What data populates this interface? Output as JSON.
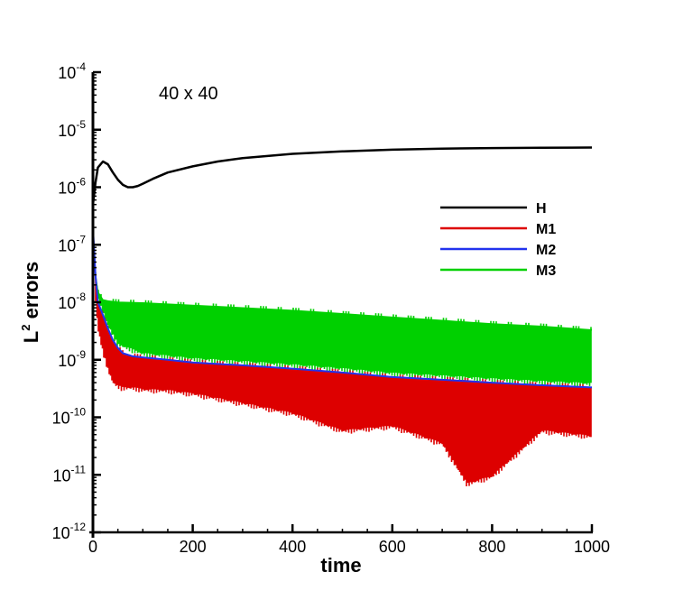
{
  "chart_data": {
    "type": "line",
    "annotation": "40 x 40",
    "xlabel": "time",
    "ylabel_base": "L",
    "ylabel_sup": "2",
    "ylabel_rest": " errors",
    "xlim": [
      0,
      1000
    ],
    "ylim": [
      1e-12,
      0.0001
    ],
    "yscale": "log",
    "x_ticks": [
      0,
      200,
      400,
      600,
      800,
      1000
    ],
    "x_tick_labels": [
      "0",
      "200",
      "400",
      "600",
      "800",
      "1000"
    ],
    "y_tick_exponents": [
      -12,
      -11,
      -10,
      -9,
      -8,
      -7,
      -6,
      -5,
      -4
    ],
    "y_tick_labels": [
      {
        "base": "10",
        "exp": "-12"
      },
      {
        "base": "10",
        "exp": "-11"
      },
      {
        "base": "10",
        "exp": "-10"
      },
      {
        "base": "10",
        "exp": "-9"
      },
      {
        "base": "10",
        "exp": "-8"
      },
      {
        "base": "10",
        "exp": "-7"
      },
      {
        "base": "10",
        "exp": "-6"
      },
      {
        "base": "10",
        "exp": "-5"
      },
      {
        "base": "10",
        "exp": "-4"
      }
    ],
    "legend_position": "right, upper-middle",
    "series": [
      {
        "name": "H",
        "color": "#000000",
        "style": "line",
        "x": [
          0,
          5,
          10,
          20,
          30,
          40,
          50,
          60,
          70,
          80,
          90,
          100,
          120,
          150,
          200,
          250,
          300,
          400,
          500,
          600,
          700,
          800,
          900,
          1000
        ],
        "y": [
          5e-07,
          1.2e-06,
          2.2e-06,
          2.8e-06,
          2.5e-06,
          1.8e-06,
          1.35e-06,
          1.1e-06,
          1e-06,
          1e-06,
          1.05e-06,
          1.15e-06,
          1.4e-06,
          1.8e-06,
          2.3e-06,
          2.8e-06,
          3.2e-06,
          3.8e-06,
          4.2e-06,
          4.5e-06,
          4.7e-06,
          4.8e-06,
          4.85e-06,
          4.9e-06
        ]
      },
      {
        "name": "M1",
        "color": "#dd0000",
        "style": "oscillating band",
        "x": [
          0,
          5,
          10,
          20,
          30,
          40,
          50,
          60,
          80,
          100,
          150,
          200,
          300,
          400,
          500,
          600,
          700,
          750,
          800,
          900,
          1000
        ],
        "upper": [
          2e-07,
          3e-08,
          1e-08,
          6e-09,
          3.5e-09,
          2.2e-09,
          1.6e-09,
          1.3e-09,
          1.15e-09,
          1.1e-09,
          1e-09,
          9e-10,
          8e-10,
          7e-10,
          6e-10,
          5e-10,
          4.5e-10,
          4.3e-10,
          4e-10,
          3.6e-10,
          3.3e-10
        ],
        "lower": [
          2e-07,
          1e-08,
          3e-09,
          1.2e-09,
          6e-10,
          3.5e-10,
          3e-10,
          2.8e-10,
          2.8e-10,
          2.6e-10,
          2.5e-10,
          2.2e-10,
          1.5e-10,
          1e-10,
          5e-11,
          6e-11,
          3e-11,
          6e-12,
          8e-12,
          5e-11,
          4e-11
        ]
      },
      {
        "name": "M2",
        "color": "#2233ee",
        "style": "line",
        "x": [
          0,
          5,
          10,
          20,
          30,
          40,
          50,
          60,
          80,
          100,
          150,
          200,
          300,
          400,
          500,
          600,
          700,
          800,
          900,
          1000
        ],
        "y": [
          2e-07,
          3e-08,
          1e-08,
          6e-09,
          3.5e-09,
          2.2e-09,
          1.6e-09,
          1.3e-09,
          1.15e-09,
          1.1e-09,
          1e-09,
          9e-10,
          8e-10,
          7e-10,
          6e-10,
          5e-10,
          4.5e-10,
          4e-10,
          3.6e-10,
          3.3e-10
        ]
      },
      {
        "name": "M3",
        "color": "#00d000",
        "style": "oscillating band",
        "x": [
          0,
          5,
          10,
          20,
          30,
          50,
          100,
          200,
          300,
          400,
          500,
          600,
          700,
          800,
          900,
          1000
        ],
        "upper": [
          2e-07,
          3e-08,
          1.5e-08,
          1.1e-08,
          1.05e-08,
          1e-08,
          9.7e-09,
          8.8e-09,
          8e-09,
          7.2e-09,
          6.3e-09,
          5.5e-09,
          4.8e-09,
          4.2e-09,
          3.8e-09,
          3.3e-09
        ],
        "lower": [
          2e-07,
          3e-08,
          1e-08,
          6e-09,
          3.5e-09,
          1.6e-09,
          1.1e-09,
          9e-10,
          8e-10,
          7e-10,
          6e-10,
          5e-10,
          4.5e-10,
          4e-10,
          3.6e-10,
          3.3e-10
        ]
      }
    ]
  }
}
